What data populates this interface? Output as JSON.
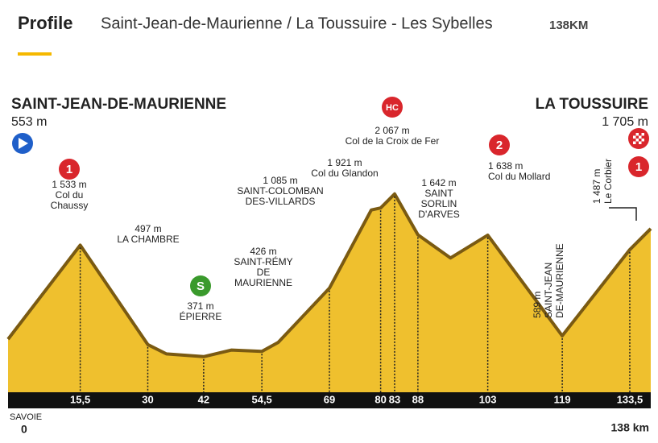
{
  "chart_data": {
    "type": "area",
    "title": "Profile",
    "subtitle": "Saint-Jean-de-Maurienne / La Toussuire - Les Sybelles",
    "distance": "138KM",
    "start": {
      "name": "SAINT-JEAN-DE-MAURIENNE",
      "altitude": "553 m"
    },
    "finish": {
      "name": "LA TOUSSUIRE",
      "altitude": "1 705 m"
    },
    "region": "SAVOIE",
    "axis_start": "0",
    "axis_end": "138 km",
    "color": "#efc02e",
    "x": [
      0,
      15.5,
      30,
      34,
      42,
      48,
      54.5,
      58,
      69,
      78,
      80,
      83,
      88,
      95,
      103,
      119,
      133.5,
      138
    ],
    "values": [
      553,
      1533,
      497,
      400,
      371,
      440,
      426,
      520,
      1085,
      1900,
      1921,
      2067,
      1642,
      1400,
      1638,
      589,
      1487,
      1705
    ],
    "xlim": [
      0,
      138
    ],
    "ylim": [
      0,
      2200
    ],
    "xticks": [
      {
        "value": 15.5,
        "label": "15,5"
      },
      30,
      42,
      {
        "value": 54.5,
        "label": "54,5"
      },
      69,
      80,
      83,
      88,
      103,
      119,
      {
        "value": 133.5,
        "label": "133,5"
      }
    ],
    "annotations": [
      {
        "lines": [
          "1 533 m",
          "Col du",
          "Chaussy"
        ],
        "badge": "1"
      },
      {
        "lines": [
          "497 m",
          "LA CHAMBRE"
        ]
      },
      {
        "lines": [
          "371 m",
          "ÉPIERRE"
        ],
        "badge": "S"
      },
      {
        "lines": [
          "426 m",
          "SAINT-RÉMY",
          "DE",
          "MAURIENNE"
        ]
      },
      {
        "lines": [
          "1 085 m",
          "SAINT-COLOMBAN",
          "DES-VILLARDS"
        ]
      },
      {
        "lines": [
          "1 921 m",
          "Col du Glandon"
        ]
      },
      {
        "lines": [
          "2 067 m",
          "Col de la Croix de Fer"
        ],
        "badge": "HC"
      },
      {
        "lines": [
          "1 642 m",
          "SAINT",
          "SORLIN",
          "D'ARVES"
        ]
      },
      {
        "lines": [
          "1 638 m",
          "Col du Mollard"
        ],
        "badge": "2"
      },
      {
        "lines": [
          "589 m",
          "SAINT-JEAN",
          "DE-MAURIENNE"
        ]
      },
      {
        "lines": [
          "1 487 m",
          "Le Corbier"
        ],
        "badge": "1"
      }
    ]
  }
}
